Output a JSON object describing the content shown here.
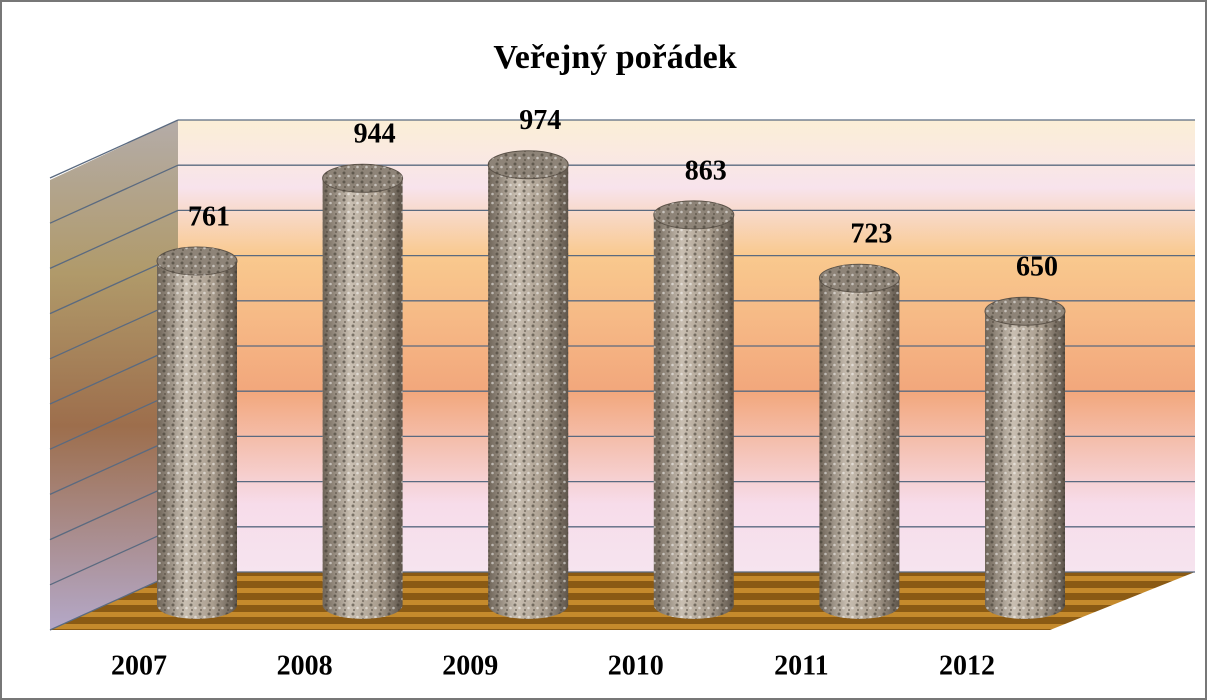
{
  "chart_data": {
    "type": "bar",
    "title": "Veřejný pořádek",
    "categories": [
      "2007",
      "2008",
      "2009",
      "2010",
      "2011",
      "2012"
    ],
    "values": [
      761,
      944,
      974,
      863,
      723,
      650
    ],
    "color": "#9c9080",
    "ylim": [
      0,
      1000
    ],
    "yticks": [
      0,
      100,
      200,
      300,
      400,
      500,
      600,
      700,
      800,
      900,
      1000
    ],
    "grid": true
  }
}
